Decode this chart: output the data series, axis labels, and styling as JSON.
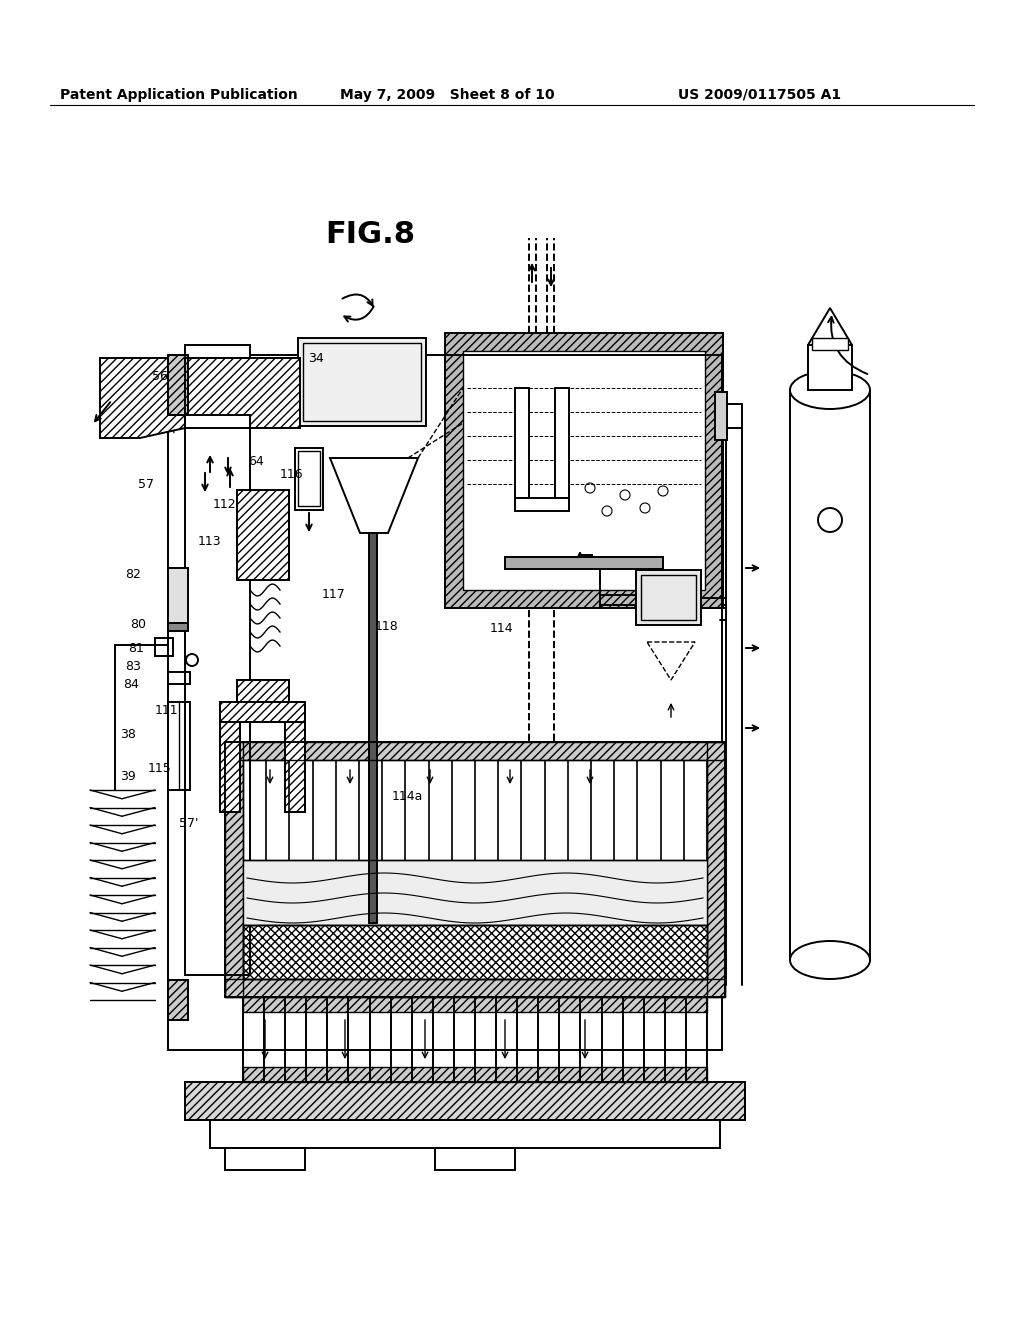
{
  "bg_color": "#ffffff",
  "line_color": "#000000",
  "header_left": "Patent Application Publication",
  "header_mid": "May 7, 2009   Sheet 8 of 10",
  "header_right": "US 2009/0117505 A1",
  "fig_label": "FIG.8"
}
